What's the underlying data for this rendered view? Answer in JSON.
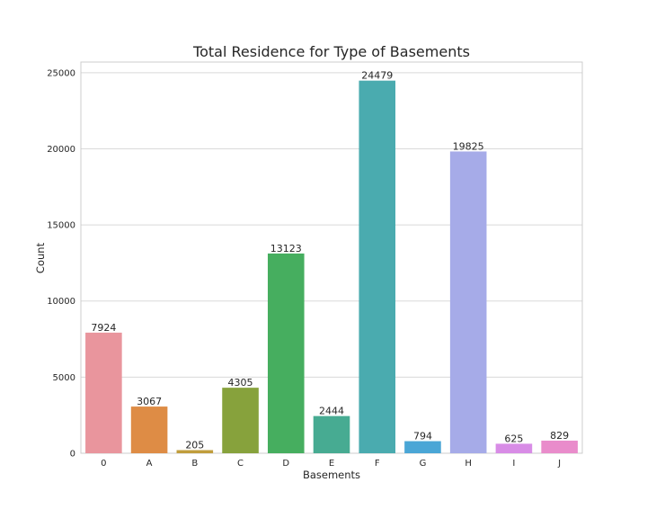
{
  "chart_data": {
    "type": "bar",
    "title": "Total Residence for Type of Basements",
    "xlabel": "Basements",
    "ylabel": "Count",
    "categories": [
      "0",
      "A",
      "B",
      "C",
      "D",
      "E",
      "F",
      "G",
      "H",
      "I",
      "J"
    ],
    "values": [
      7924,
      3067,
      205,
      4305,
      13123,
      2444,
      24479,
      794,
      19825,
      625,
      829
    ],
    "colors": [
      "#e9959d",
      "#de8c45",
      "#c09d3d",
      "#87a23c",
      "#46ae5f",
      "#47ab92",
      "#4aabaf",
      "#4aa6d6",
      "#a6abe8",
      "#d88ce6",
      "#e98ccb"
    ],
    "ylim": [
      0,
      25700
    ],
    "yticks": [
      0,
      5000,
      10000,
      15000,
      20000,
      25000
    ],
    "grid": true,
    "legend": "none"
  }
}
